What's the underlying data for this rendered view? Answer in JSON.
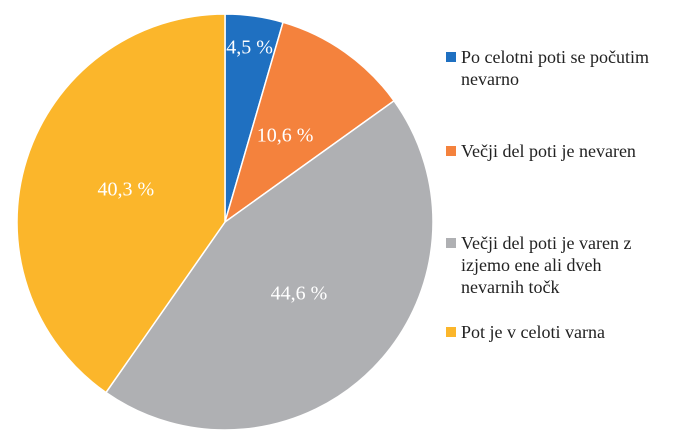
{
  "chart_data": {
    "type": "pie",
    "categories": [
      "Po celotni poti se počutim nevarno",
      "Večji del poti je nevaren",
      "Večji del poti je varen z izjemo ene ali dveh nevarnih točk",
      "Pot je v celoti varna"
    ],
    "values": [
      4.5,
      10.6,
      44.6,
      40.3
    ],
    "value_labels": [
      "4,5 %",
      "10,6 %",
      "44,6 %",
      "40,3 %"
    ],
    "colors": [
      "#1f70c1",
      "#f4823d",
      "#afb0b3",
      "#fbb62b"
    ]
  }
}
